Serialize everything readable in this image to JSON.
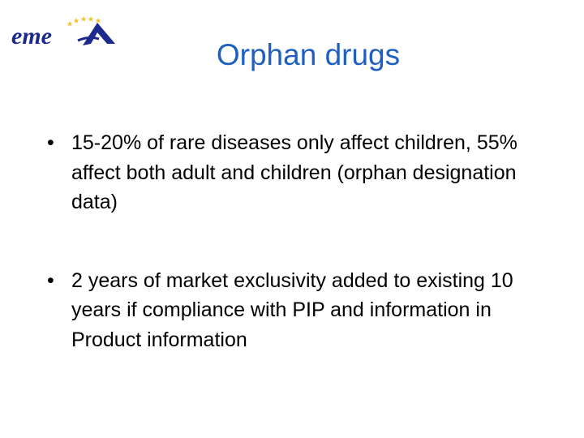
{
  "slide": {
    "logo": {
      "text": "emea",
      "icon": "emea-logo",
      "colors": {
        "text": "#1b2a8c",
        "stars": "#f2c230"
      }
    },
    "title": "Orphan drugs",
    "bullet_symbol": "•",
    "bullets": [
      {
        "text": "15-20% of rare diseases only affect children, 55% affect both adult and children (orphan designation data)"
      },
      {
        "text": "2 years of market exclusivity added to existing 10 years if compliance with PIP and information in Product information"
      }
    ],
    "colors": {
      "title": "#1f5fbf",
      "body": "#000000",
      "background": "#ffffff"
    }
  }
}
